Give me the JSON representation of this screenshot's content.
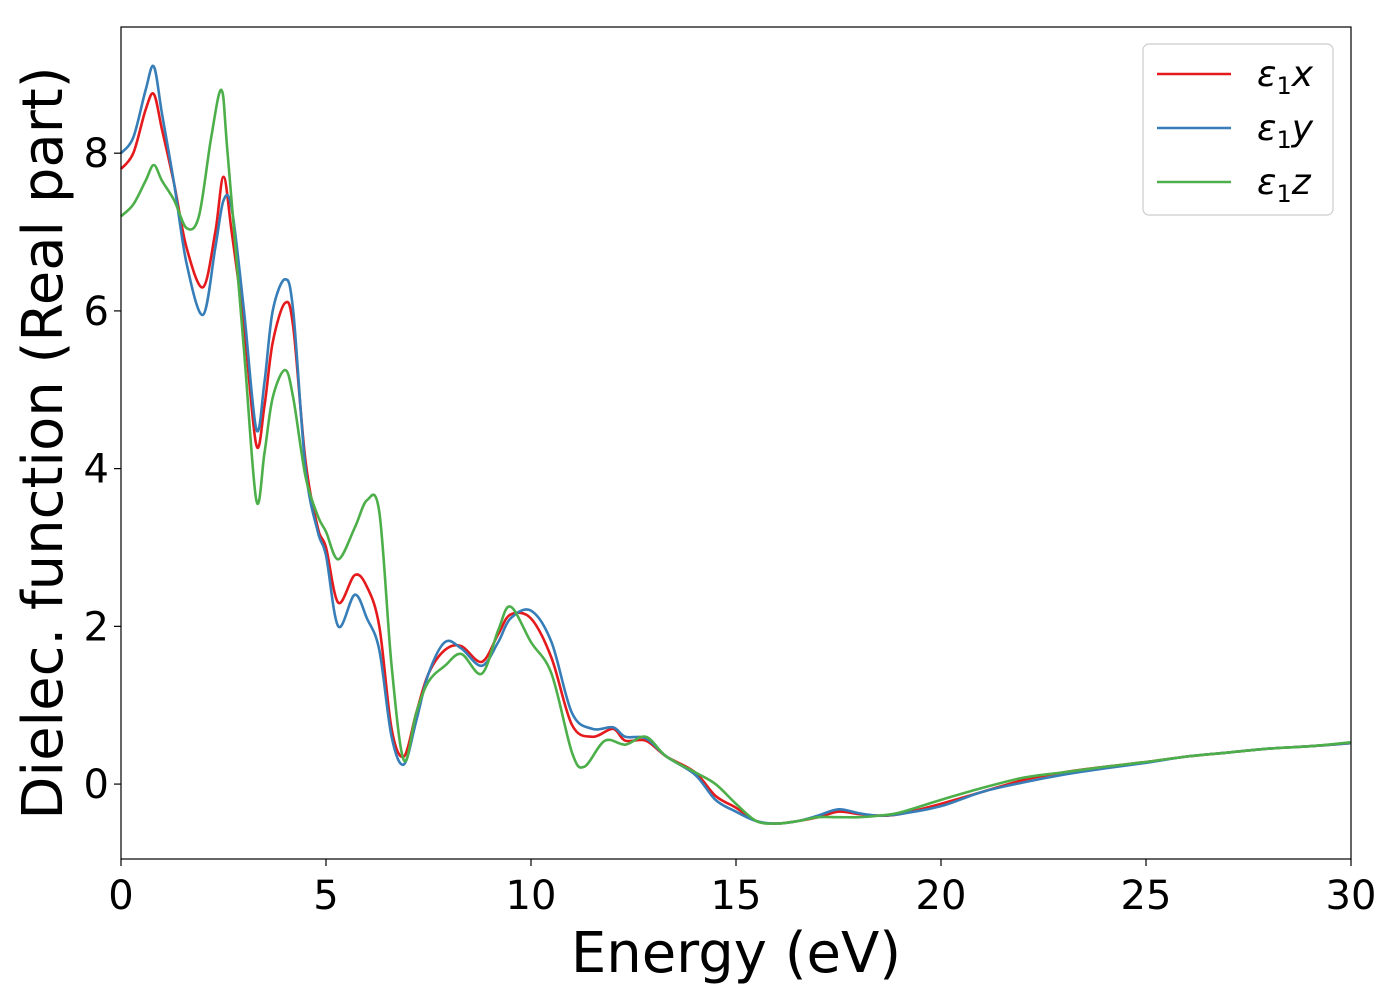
{
  "chart_data": {
    "type": "line",
    "xlabel": "Energy (eV)",
    "ylabel": "Dielec. function (Real part)",
    "xlim": [
      0,
      30
    ],
    "ylim": [
      -0.95,
      9.6
    ],
    "xticks": [
      0,
      5,
      10,
      15,
      20,
      25,
      30
    ],
    "xtick_labels": [
      "0",
      "5",
      "10",
      "15",
      "20",
      "25",
      "30"
    ],
    "yticks": [
      0,
      2,
      4,
      6,
      8
    ],
    "ytick_labels": [
      "0",
      "2",
      "4",
      "6",
      "8"
    ],
    "grid": false,
    "legend_position": "top-right",
    "series": [
      {
        "name": "ε1x",
        "legend_main": "ε",
        "legend_sub": "1",
        "legend_suffix": "x",
        "color": "#e41a1c",
        "x": [
          0,
          0.3,
          0.6,
          0.8,
          1.0,
          1.3,
          1.6,
          2.0,
          2.3,
          2.5,
          2.7,
          3.0,
          3.3,
          3.5,
          3.7,
          4.0,
          4.2,
          4.5,
          4.8,
          5.0,
          5.3,
          5.7,
          6.0,
          6.3,
          6.6,
          6.9,
          7.2,
          7.5,
          7.9,
          8.3,
          8.8,
          9.2,
          9.5,
          10.0,
          10.5,
          11.0,
          11.5,
          12.0,
          12.3,
          12.8,
          13.3,
          14.0,
          14.5,
          15.0,
          15.5,
          16.0,
          16.5,
          17.0,
          17.5,
          18.0,
          18.5,
          19.0,
          20.0,
          21.0,
          22.0,
          23.0,
          24.0,
          25.0,
          26.0,
          27.0,
          28.0,
          29.0,
          30.0
        ],
        "y": [
          7.8,
          8.0,
          8.55,
          8.75,
          8.3,
          7.6,
          6.8,
          6.3,
          7.0,
          7.7,
          7.0,
          5.8,
          4.3,
          4.8,
          5.6,
          6.1,
          5.8,
          4.1,
          3.25,
          3.0,
          2.3,
          2.65,
          2.5,
          2.0,
          0.7,
          0.35,
          0.9,
          1.4,
          1.7,
          1.75,
          1.55,
          1.9,
          2.15,
          2.1,
          1.6,
          0.75,
          0.6,
          0.7,
          0.55,
          0.55,
          0.35,
          0.15,
          -0.15,
          -0.3,
          -0.47,
          -0.5,
          -0.47,
          -0.42,
          -0.35,
          -0.38,
          -0.4,
          -0.38,
          -0.25,
          -0.1,
          0.05,
          0.15,
          0.22,
          0.28,
          0.35,
          0.4,
          0.45,
          0.48,
          0.52
        ]
      },
      {
        "name": "ε1y",
        "legend_main": "ε",
        "legend_sub": "1",
        "legend_suffix": "y",
        "color": "#377eb8",
        "x": [
          0,
          0.3,
          0.6,
          0.8,
          1.0,
          1.3,
          1.6,
          2.0,
          2.3,
          2.5,
          2.7,
          3.0,
          3.3,
          3.5,
          3.7,
          4.0,
          4.2,
          4.5,
          4.8,
          5.0,
          5.3,
          5.7,
          6.0,
          6.3,
          6.6,
          6.9,
          7.2,
          7.5,
          7.9,
          8.3,
          8.8,
          9.2,
          9.5,
          10.0,
          10.5,
          11.0,
          11.5,
          12.0,
          12.3,
          12.8,
          13.3,
          14.0,
          14.5,
          15.0,
          15.5,
          16.0,
          16.5,
          17.0,
          17.5,
          18.0,
          18.5,
          19.0,
          20.0,
          21.0,
          22.0,
          23.0,
          24.0,
          25.0,
          26.0,
          27.0,
          28.0,
          29.0,
          30.0
        ],
        "y": [
          8.0,
          8.2,
          8.8,
          9.1,
          8.5,
          7.6,
          6.6,
          5.95,
          6.8,
          7.4,
          7.3,
          6.0,
          4.5,
          5.1,
          6.0,
          6.4,
          6.0,
          4.0,
          3.2,
          2.9,
          2.0,
          2.4,
          2.1,
          1.7,
          0.6,
          0.25,
          0.8,
          1.4,
          1.8,
          1.72,
          1.5,
          1.8,
          2.1,
          2.2,
          1.8,
          0.9,
          0.7,
          0.72,
          0.6,
          0.58,
          0.35,
          0.12,
          -0.2,
          -0.35,
          -0.47,
          -0.5,
          -0.47,
          -0.4,
          -0.32,
          -0.37,
          -0.4,
          -0.38,
          -0.28,
          -0.1,
          0.02,
          0.12,
          0.2,
          0.27,
          0.35,
          0.4,
          0.45,
          0.48,
          0.52
        ]
      },
      {
        "name": "ε1z",
        "legend_main": "ε",
        "legend_sub": "1",
        "legend_suffix": "z",
        "color": "#4daf4a",
        "x": [
          0,
          0.3,
          0.6,
          0.8,
          1.0,
          1.3,
          1.6,
          1.9,
          2.2,
          2.45,
          2.6,
          3.0,
          3.3,
          3.5,
          3.7,
          4.0,
          4.2,
          4.5,
          4.8,
          5.0,
          5.3,
          5.7,
          6.0,
          6.3,
          6.6,
          6.9,
          7.2,
          7.5,
          7.9,
          8.3,
          8.8,
          9.2,
          9.5,
          10.0,
          10.5,
          11.0,
          11.3,
          11.8,
          12.3,
          12.8,
          13.3,
          14.0,
          14.5,
          15.0,
          15.5,
          16.0,
          16.5,
          17.0,
          17.5,
          18.0,
          18.5,
          19.0,
          20.0,
          21.0,
          22.0,
          23.0,
          24.0,
          25.0,
          26.0,
          27.0,
          28.0,
          29.0,
          30.0
        ],
        "y": [
          7.2,
          7.35,
          7.65,
          7.85,
          7.65,
          7.4,
          7.05,
          7.2,
          8.2,
          8.8,
          8.0,
          5.5,
          3.6,
          4.2,
          4.9,
          5.25,
          4.9,
          3.9,
          3.4,
          3.2,
          2.85,
          3.25,
          3.6,
          3.45,
          1.5,
          0.3,
          0.9,
          1.3,
          1.5,
          1.65,
          1.4,
          1.95,
          2.25,
          1.8,
          1.4,
          0.4,
          0.22,
          0.55,
          0.5,
          0.6,
          0.35,
          0.15,
          0.0,
          -0.25,
          -0.47,
          -0.5,
          -0.47,
          -0.42,
          -0.42,
          -0.42,
          -0.4,
          -0.36,
          -0.2,
          -0.05,
          0.08,
          0.15,
          0.22,
          0.28,
          0.35,
          0.4,
          0.45,
          0.48,
          0.53
        ]
      }
    ]
  }
}
